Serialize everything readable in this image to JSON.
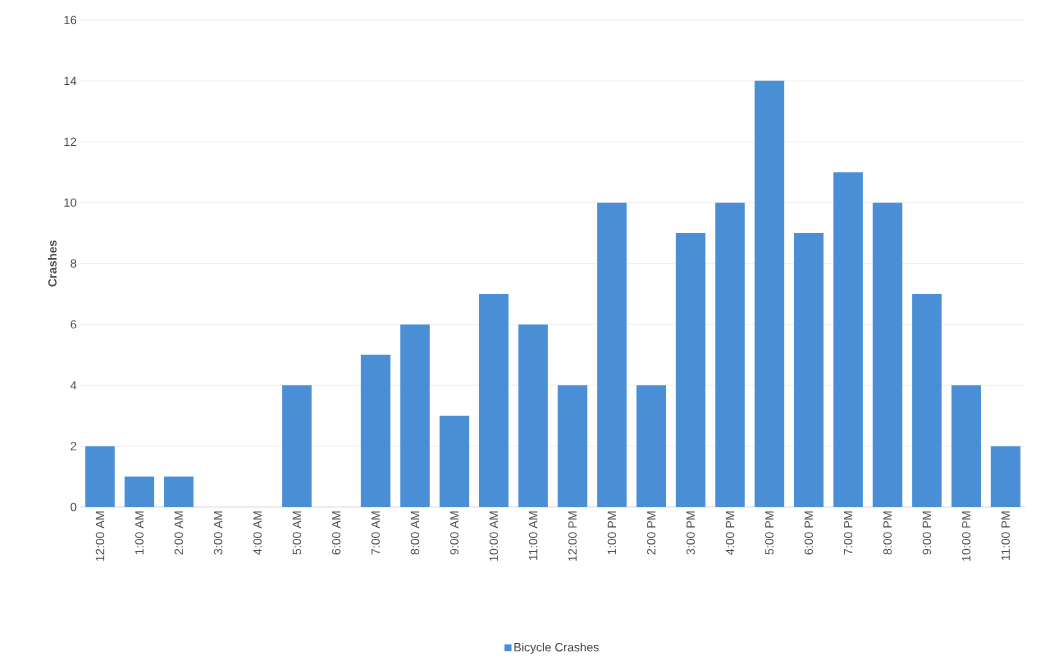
{
  "chart_data": {
    "type": "bar",
    "ylabel": "Crashes",
    "categories": [
      "12:00 AM",
      "1:00 AM",
      "2:00 AM",
      "3:00 AM",
      "4:00 AM",
      "5:00 AM",
      "6:00 AM",
      "7:00 AM",
      "8:00 AM",
      "9:00 AM",
      "10:00 AM",
      "11:00 AM",
      "12:00 PM",
      "1:00 PM",
      "2:00 PM",
      "3:00 PM",
      "4:00 PM",
      "5:00 PM",
      "6:00 PM",
      "7:00 PM",
      "8:00 PM",
      "9:00 PM",
      "10:00 PM",
      "11:00 PM"
    ],
    "series": [
      {
        "name": "Bicycle Crashes",
        "color": "#4a8fd6",
        "values": [
          2,
          1,
          1,
          0,
          0,
          4,
          0,
          5,
          6,
          3,
          7,
          6,
          4,
          10,
          4,
          9,
          10,
          14,
          9,
          11,
          10,
          7,
          4,
          2
        ]
      }
    ],
    "ylim": [
      0,
      16
    ],
    "yticks": [
      0,
      2,
      4,
      6,
      8,
      10,
      12,
      14,
      16
    ],
    "grid": "y",
    "legend": "bottom"
  }
}
